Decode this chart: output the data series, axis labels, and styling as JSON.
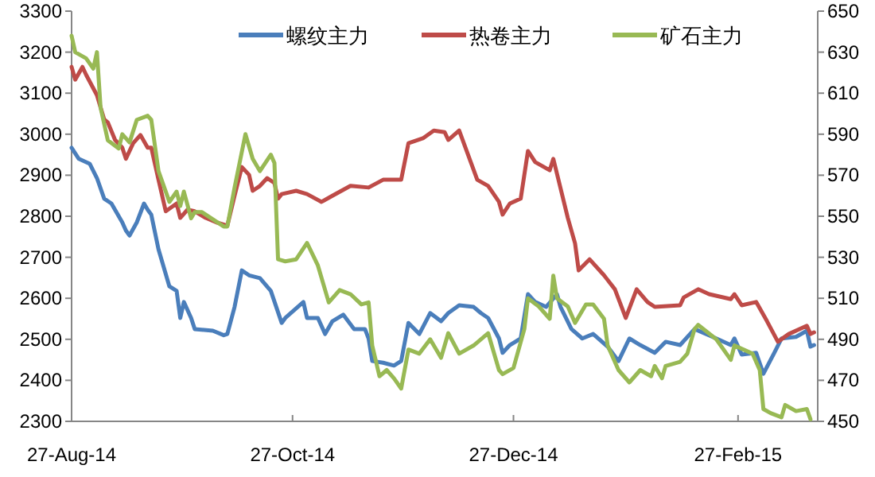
{
  "chart_data": {
    "type": "line",
    "xlim": [
      "2014-08-27",
      "2015-03-21"
    ],
    "xticks": [
      {
        "value": "2014-08-27",
        "label": "27-Aug-14"
      },
      {
        "value": "2014-10-27",
        "label": "27-Oct-14"
      },
      {
        "value": "2014-12-27",
        "label": "27-Dec-14"
      },
      {
        "value": "2015-02-27",
        "label": "27-Feb-15"
      }
    ],
    "ylim": [
      2300,
      3300
    ],
    "yticks": [
      2300,
      2400,
      2500,
      2600,
      2700,
      2800,
      2900,
      3000,
      3100,
      3200,
      3300
    ],
    "y2lim": [
      450,
      650
    ],
    "y2ticks": [
      450,
      470,
      490,
      510,
      530,
      550,
      570,
      590,
      610,
      630,
      650
    ],
    "grid": false,
    "legend": "top",
    "line_style": "solid",
    "marker": "none",
    "series": [
      {
        "name": "螺纹主力",
        "color": "#4a7ebb",
        "x": [
          "2014-08-27",
          "2014-08-29",
          "2014-09-01",
          "2014-09-03",
          "2014-09-05",
          "2014-09-07",
          "2014-09-10",
          "2014-09-11",
          "2014-09-12",
          "2014-09-14",
          "2014-09-16",
          "2014-09-17",
          "2014-09-18",
          "2014-09-20",
          "2014-09-23",
          "2014-09-25",
          "2014-09-26",
          "2014-09-27",
          "2014-09-29",
          "2014-09-30",
          "2014-10-05",
          "2014-10-08",
          "2014-10-09",
          "2014-10-11",
          "2014-10-13",
          "2014-10-15",
          "2014-10-18",
          "2014-10-21",
          "2014-10-24",
          "2014-10-25",
          "2014-10-30",
          "2014-10-31",
          "2014-11-03",
          "2014-11-05",
          "2014-11-07",
          "2014-11-10",
          "2014-11-13",
          "2014-11-16",
          "2014-11-17",
          "2014-11-18",
          "2014-11-21",
          "2014-11-24",
          "2014-11-26",
          "2014-11-28",
          "2014-12-01",
          "2014-12-04",
          "2014-12-07",
          "2014-12-09",
          "2014-12-12",
          "2014-12-16",
          "2014-12-18",
          "2014-12-20",
          "2014-12-23",
          "2014-12-24",
          "2014-12-26",
          "2014-12-29",
          "2014-12-31",
          "2015-01-02",
          "2015-01-05",
          "2015-01-08",
          "2015-01-09",
          "2015-01-12",
          "2015-01-15",
          "2015-01-18",
          "2015-01-22",
          "2015-01-25",
          "2015-01-28",
          "2015-01-31",
          "2015-02-04",
          "2015-02-07",
          "2015-02-11",
          "2015-02-15",
          "2015-02-21",
          "2015-02-25",
          "2015-02-26",
          "2015-02-28",
          "2015-03-04",
          "2015-03-06",
          "2015-03-09",
          "2015-03-11",
          "2015-03-15",
          "2015-03-18",
          "2015-03-19",
          "2015-03-20"
        ],
        "values": [
          2967,
          2940,
          2928,
          2893,
          2843,
          2831,
          2785,
          2765,
          2753,
          2785,
          2831,
          2816,
          2804,
          2719,
          2629,
          2618,
          2552,
          2591,
          2552,
          2525,
          2521,
          2510,
          2513,
          2579,
          2668,
          2656,
          2649,
          2618,
          2540,
          2552,
          2591,
          2552,
          2552,
          2513,
          2544,
          2560,
          2525,
          2525,
          2502,
          2447,
          2443,
          2436,
          2447,
          2540,
          2513,
          2564,
          2544,
          2564,
          2583,
          2579,
          2564,
          2552,
          2502,
          2467,
          2486,
          2502,
          2610,
          2591,
          2579,
          2610,
          2579,
          2525,
          2502,
          2513,
          2482,
          2447,
          2502,
          2486,
          2467,
          2494,
          2486,
          2525,
          2502,
          2486,
          2502,
          2463,
          2467,
          2416,
          2467,
          2502,
          2506,
          2521,
          2482,
          2486
        ]
      },
      {
        "name": "热卷主力",
        "color": "#be4b48",
        "x": [
          "2014-08-27",
          "2014-08-28",
          "2014-08-30",
          "2014-08-31",
          "2014-09-03",
          "2014-09-05",
          "2014-09-06",
          "2014-09-08",
          "2014-09-10",
          "2014-09-11",
          "2014-09-13",
          "2014-09-15",
          "2014-09-17",
          "2014-09-18",
          "2014-09-20",
          "2014-09-22",
          "2014-09-25",
          "2014-09-26",
          "2014-09-28",
          "2014-09-30",
          "2014-10-03",
          "2014-10-06",
          "2014-10-09",
          "2014-10-11",
          "2014-10-13",
          "2014-10-15",
          "2014-10-16",
          "2014-10-18",
          "2014-10-20",
          "2014-10-22",
          "2014-10-23",
          "2014-10-24",
          "2014-10-28",
          "2014-10-31",
          "2014-11-04",
          "2014-11-07",
          "2014-11-12",
          "2014-11-17",
          "2014-11-21",
          "2014-11-26",
          "2014-11-28",
          "2014-12-02",
          "2014-12-05",
          "2014-12-08",
          "2014-12-09",
          "2014-12-12",
          "2014-12-17",
          "2014-12-20",
          "2014-12-23",
          "2014-12-24",
          "2014-12-26",
          "2014-12-29",
          "2014-12-31",
          "2015-01-02",
          "2015-01-06",
          "2015-01-07",
          "2015-01-11",
          "2015-01-13",
          "2015-01-14",
          "2015-01-17",
          "2015-01-21",
          "2015-01-24",
          "2015-01-27",
          "2015-01-30",
          "2015-02-02",
          "2015-02-04",
          "2015-02-11",
          "2015-02-12",
          "2015-02-16",
          "2015-02-19",
          "2015-02-25",
          "2015-02-26",
          "2015-02-28",
          "2015-03-04",
          "2015-03-07",
          "2015-03-10",
          "2015-03-13",
          "2015-03-18",
          "2015-03-19",
          "2015-03-20"
        ],
        "values": [
          3164,
          3133,
          3164,
          3145,
          3095,
          3036,
          3029,
          2986,
          2967,
          2940,
          2978,
          2998,
          2967,
          2967,
          2889,
          2812,
          2831,
          2796,
          2816,
          2812,
          2796,
          2785,
          2777,
          2850,
          2920,
          2901,
          2862,
          2874,
          2893,
          2881,
          2843,
          2854,
          2862,
          2854,
          2835,
          2850,
          2874,
          2870,
          2889,
          2889,
          2978,
          2990,
          3009,
          3005,
          2986,
          3009,
          2889,
          2874,
          2835,
          2804,
          2831,
          2843,
          2959,
          2932,
          2912,
          2940,
          2796,
          2734,
          2668,
          2695,
          2656,
          2622,
          2552,
          2622,
          2591,
          2579,
          2583,
          2602,
          2622,
          2610,
          2598,
          2610,
          2583,
          2591,
          2544,
          2494,
          2513,
          2533,
          2513,
          2517
        ]
      },
      {
        "name": "矿石主力",
        "color": "#98b954",
        "axis": "y2",
        "x": [
          "2014-08-27",
          "2014-08-28",
          "2014-08-31",
          "2014-09-02",
          "2014-09-03",
          "2014-09-04",
          "2014-09-06",
          "2014-09-09",
          "2014-09-10",
          "2014-09-12",
          "2014-09-14",
          "2014-09-17",
          "2014-09-18",
          "2014-09-20",
          "2014-09-23",
          "2014-09-25",
          "2014-09-26",
          "2014-09-27",
          "2014-09-29",
          "2014-09-30",
          "2014-10-02",
          "2014-10-08",
          "2014-10-09",
          "2014-10-11",
          "2014-10-14",
          "2014-10-16",
          "2014-10-18",
          "2014-10-21",
          "2014-10-22",
          "2014-10-23",
          "2014-10-25",
          "2014-10-28",
          "2014-10-31",
          "2014-11-03",
          "2014-11-06",
          "2014-11-09",
          "2014-11-12",
          "2014-11-15",
          "2014-11-17",
          "2014-11-18",
          "2014-11-20",
          "2014-11-22",
          "2014-11-24",
          "2014-11-26",
          "2014-11-28",
          "2014-12-01",
          "2014-12-04",
          "2014-12-07",
          "2014-12-09",
          "2014-12-12",
          "2014-12-16",
          "2014-12-18",
          "2014-12-20",
          "2014-12-23",
          "2014-12-24",
          "2014-12-27",
          "2014-12-30",
          "2014-12-31",
          "2015-01-03",
          "2015-01-06",
          "2015-01-07",
          "2015-01-08",
          "2015-01-11",
          "2015-01-13",
          "2015-01-16",
          "2015-01-18",
          "2015-01-21",
          "2015-01-22",
          "2015-01-25",
          "2015-01-28",
          "2015-01-31",
          "2015-02-03",
          "2015-02-04",
          "2015-02-06",
          "2015-02-07",
          "2015-02-11",
          "2015-02-13",
          "2015-02-15",
          "2015-02-16",
          "2015-02-21",
          "2015-02-25",
          "2015-02-26",
          "2015-03-03",
          "2015-03-05",
          "2015-03-06",
          "2015-03-08",
          "2015-03-11",
          "2015-03-12",
          "2015-03-15",
          "2015-03-18",
          "2015-03-19"
        ],
        "values": [
          638,
          630,
          627,
          622,
          630,
          603,
          587,
          583,
          590,
          586,
          597,
          599,
          597,
          572,
          557,
          562,
          555,
          562,
          549,
          552,
          552,
          545,
          545,
          564,
          590,
          578,
          572,
          580,
          576,
          529,
          528,
          529,
          537,
          526,
          508,
          514,
          512,
          507,
          508,
          487,
          472,
          475,
          471,
          466,
          485,
          483,
          490,
          481,
          493,
          483,
          487,
          490,
          493,
          475,
          473,
          476,
          495,
          510,
          506,
          500,
          521,
          510,
          506,
          498,
          507,
          507,
          500,
          487,
          475,
          469,
          475,
          472,
          477,
          471,
          477,
          479,
          483,
          495,
          497,
          490,
          480,
          487,
          483,
          475,
          456,
          454,
          452,
          458,
          455,
          456,
          451
        ]
      }
    ]
  }
}
